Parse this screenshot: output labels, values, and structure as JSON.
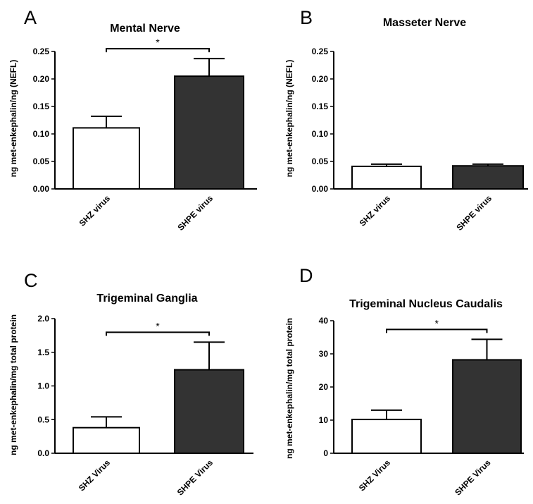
{
  "chart_data": [
    {
      "panel": "A",
      "type": "bar",
      "title": "Mental Nerve",
      "ylabel": "ng met-enkephalin/ng (NEFL)",
      "categories": [
        "SHZ virus",
        "SHPE virus"
      ],
      "values": [
        0.111,
        0.205
      ],
      "errors": [
        0.021,
        0.032
      ],
      "bar_colors": [
        "#ffffff",
        "#333333"
      ],
      "ylim": [
        0,
        0.25
      ],
      "yticks": [
        "0.00",
        "0.05",
        "0.10",
        "0.15",
        "0.20",
        "0.25"
      ],
      "significance": "*"
    },
    {
      "panel": "B",
      "type": "bar",
      "title": "Masseter Nerve",
      "ylabel": "ng met-enkephalin/ng (NEFL)",
      "categories": [
        "SHZ virus",
        "SHPE virus"
      ],
      "values": [
        0.041,
        0.042
      ],
      "errors": [
        0.004,
        0.003
      ],
      "bar_colors": [
        "#ffffff",
        "#333333"
      ],
      "ylim": [
        0,
        0.25
      ],
      "yticks": [
        "0.00",
        "0.05",
        "0.10",
        "0.15",
        "0.20",
        "0.25"
      ],
      "significance": ""
    },
    {
      "panel": "C",
      "type": "bar",
      "title": "Trigeminal Ganglia",
      "ylabel": "ng met-enkephalin/mg total protein",
      "categories": [
        "SHZ Virus",
        "SHPE Virus"
      ],
      "values": [
        0.38,
        1.24
      ],
      "errors": [
        0.16,
        0.41
      ],
      "bar_colors": [
        "#ffffff",
        "#333333"
      ],
      "ylim": [
        0,
        2.0
      ],
      "yticks": [
        "0.0",
        "0.5",
        "1.0",
        "1.5",
        "2.0"
      ],
      "significance": "*"
    },
    {
      "panel": "D",
      "type": "bar",
      "title": "Trigeminal Nucleus Caudalis",
      "ylabel": "ng met-enkephalin/mg total protein",
      "categories": [
        "SHZ Virus",
        "SHPE Virus"
      ],
      "values": [
        10.2,
        28.2
      ],
      "errors": [
        2.8,
        6.2
      ],
      "bar_colors": [
        "#ffffff",
        "#333333"
      ],
      "ylim": [
        0,
        40
      ],
      "yticks": [
        "0",
        "10",
        "20",
        "30",
        "40"
      ],
      "significance": "*"
    }
  ]
}
